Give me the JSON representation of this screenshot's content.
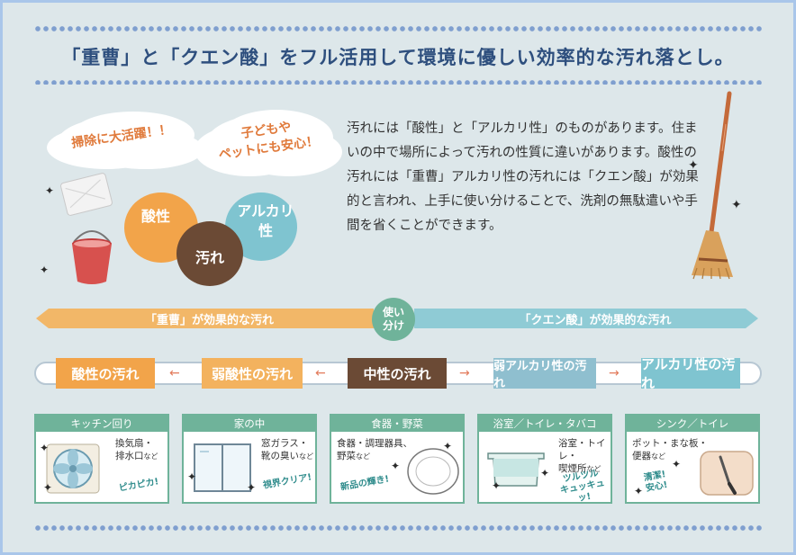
{
  "title": "「重曹」と「クエン酸」をフル活用して環境に優しい効率的な汚れ落とし。",
  "bubbles": {
    "left": "掃除に大活躍！！",
    "right_line1": "子どもや",
    "right_line2": "ペットにも安心！"
  },
  "venn": {
    "acid": "酸性",
    "dirt": "汚れ",
    "alkali_line1": "アルカリ",
    "alkali_line2": "性"
  },
  "description": "汚れには「酸性」と「アルカリ性」のものがあります。住まいの中で場所によって汚れの性質に違いがあります。酸性の汚れには「重曹」アルカリ性の汚れには「クエン酸」が効果的と言われ、上手に使い分けることで、洗剤の無駄遣いや手間を省くことができます。",
  "usage": {
    "left_label": "「重曹」が効果的な汚れ",
    "center_line1": "使い",
    "center_line2": "分け",
    "right_label": "「クエン酸」が効果的な汚れ"
  },
  "scale": {
    "acidic": "酸性の汚れ",
    "weak_acidic": "弱酸性の汚れ",
    "neutral": "中性の汚れ",
    "weak_alkaline": "弱アルカリ性の汚れ",
    "alkaline": "アルカリ性の汚れ",
    "arrow": "←",
    "arrow_right": "→"
  },
  "cards": [
    {
      "header": "キッチン回り",
      "text1": "換気扇・",
      "text2": "排水口",
      "suffix": "など",
      "note1": "ピカピカ!",
      "note2": ""
    },
    {
      "header": "家の中",
      "text1": "窓ガラス・",
      "text2": "靴の臭い",
      "suffix": "など",
      "note1": "視界クリア!",
      "note2": ""
    },
    {
      "header": "食器・野菜",
      "text1": "食器・調理器具、",
      "text2": "野菜",
      "suffix": "など",
      "note1": "新品の輝き!",
      "note2": ""
    },
    {
      "header": "浴室／トイレ・タバコ",
      "text1": "浴室・トイレ・",
      "text2": "喫煙所",
      "suffix": "など",
      "note1": "ツルツル",
      "note2": "キュッキュッ!"
    },
    {
      "header": "シンク／トイレ",
      "text1": "ポット・まな板・",
      "text2": "便器",
      "suffix": "など",
      "note1": "清潔!",
      "note2": "安心!"
    }
  ],
  "colors": {
    "orange": "#f2a44a",
    "weak_orange": "#f3b25e",
    "brown": "#6b4a35",
    "teal": "#7fc4d0",
    "weak_teal": "#8fbfcf",
    "green": "#6fb39a",
    "navy": "#2e4f7e"
  },
  "icons": [
    "sparkle-icon",
    "sponge-icon",
    "bucket-icon",
    "broom-icon",
    "fan-icon",
    "window-icon",
    "plate-icon",
    "bathtub-icon",
    "cutting-board-icon"
  ]
}
